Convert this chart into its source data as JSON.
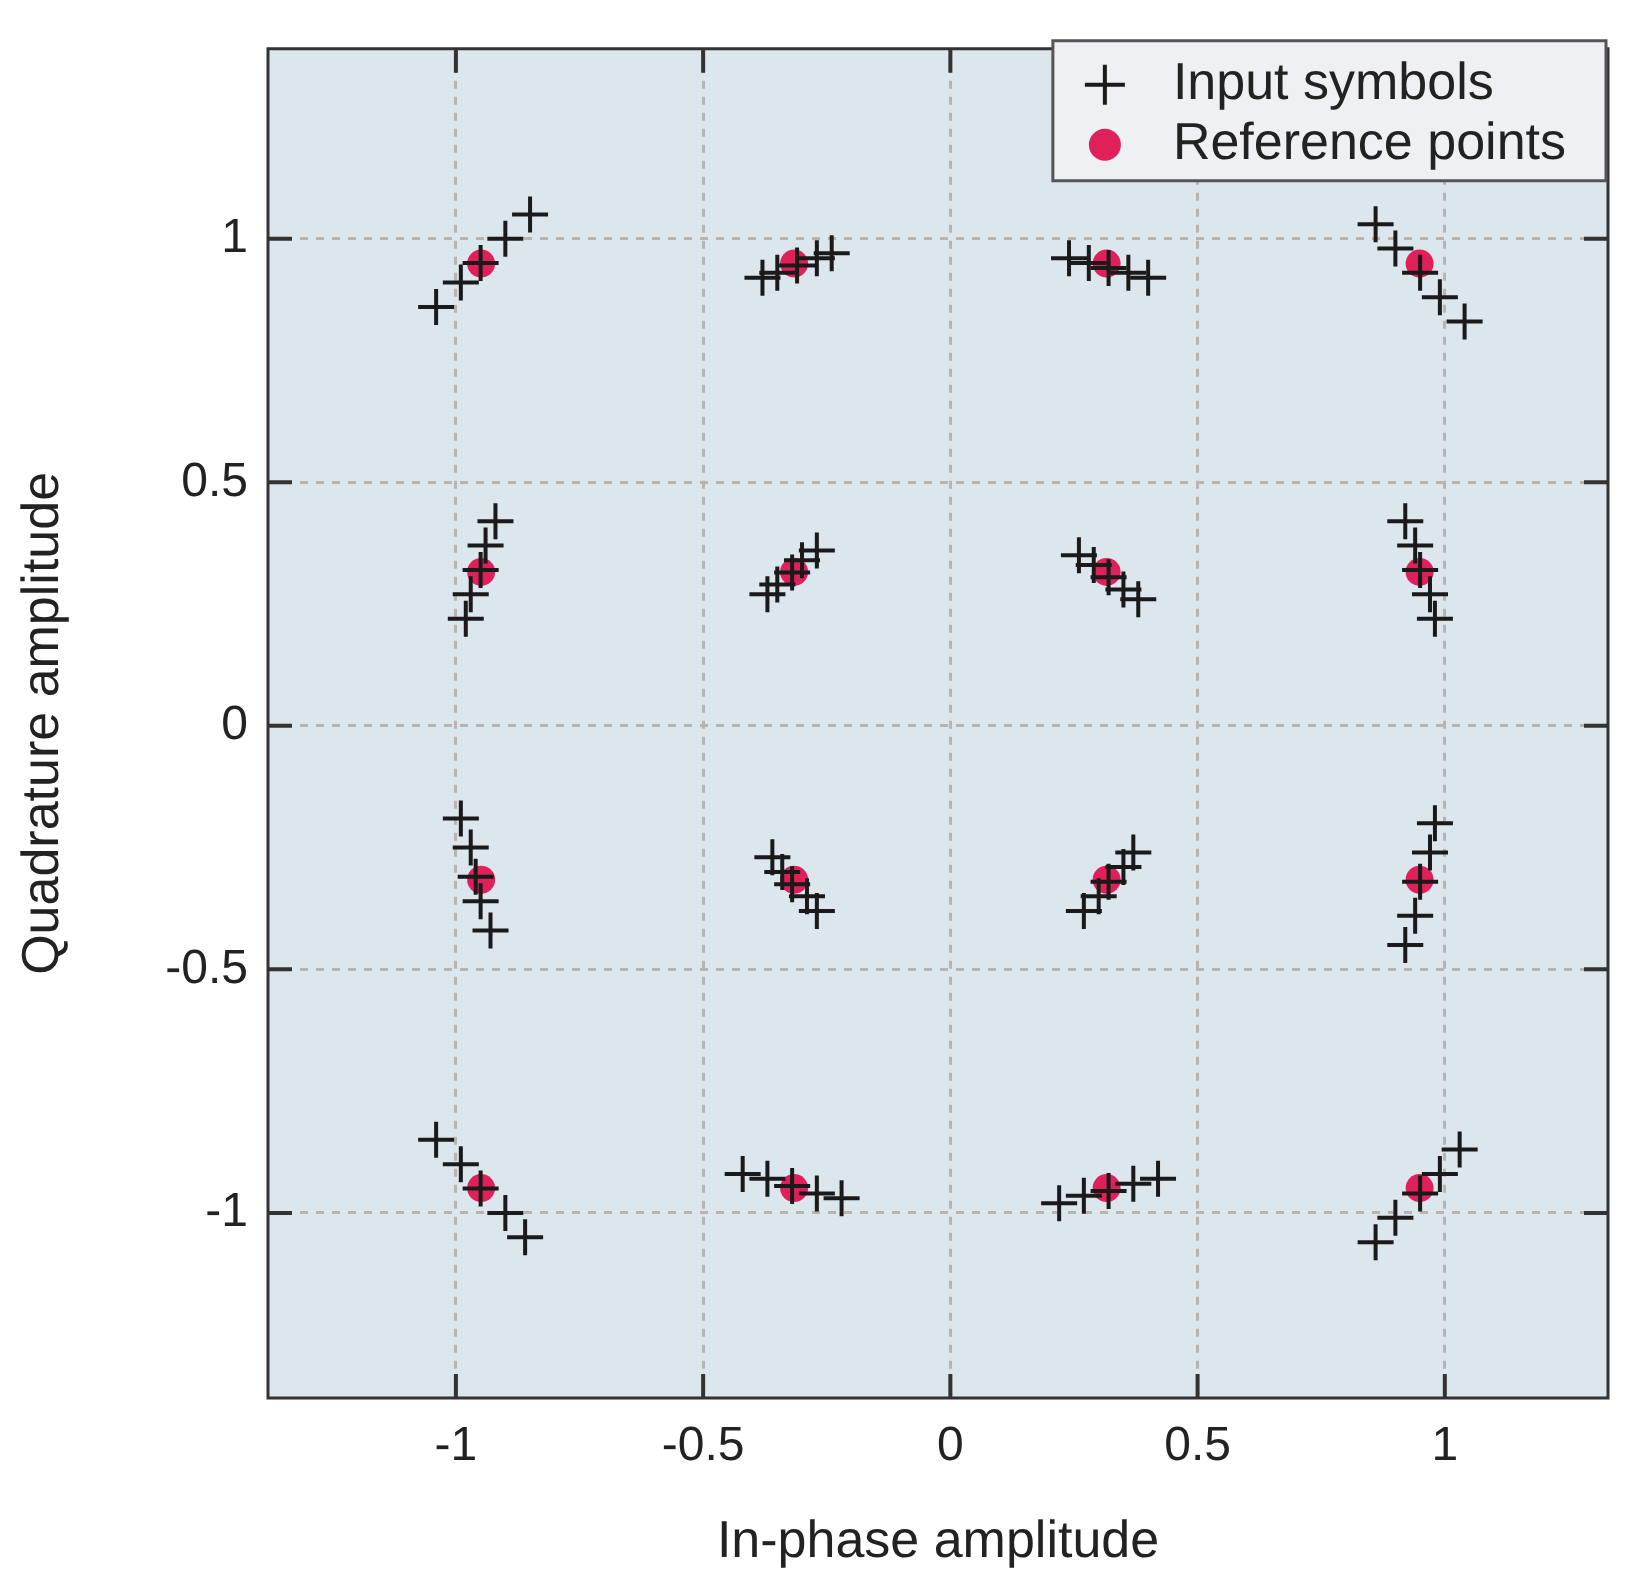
{
  "chart_data": {
    "type": "scatter",
    "xlabel": "In-phase amplitude",
    "ylabel": "Quadrature amplitude",
    "xlim": [
      -1.38,
      1.33
    ],
    "ylim": [
      -1.38,
      1.39
    ],
    "xticks": [
      -1,
      -0.5,
      0,
      0.5,
      1
    ],
    "yticks": [
      -1,
      -0.5,
      0,
      0.5,
      1
    ],
    "grid": true,
    "legend": "top right",
    "series": [
      {
        "name": "Input symbols",
        "color": "#1a1a1a",
        "marker": "cross",
        "x": [
          -1.04,
          -0.99,
          -0.95,
          -0.9,
          -0.85,
          -0.38,
          -0.35,
          -0.31,
          -0.27,
          -0.24,
          0.24,
          0.28,
          0.32,
          0.36,
          0.4,
          0.86,
          0.9,
          0.95,
          0.99,
          1.04,
          -0.98,
          -0.97,
          -0.95,
          -0.94,
          -0.92,
          -0.37,
          -0.35,
          -0.32,
          -0.3,
          -0.27,
          0.26,
          0.29,
          0.32,
          0.35,
          0.38,
          0.92,
          0.94,
          0.95,
          0.97,
          0.98,
          -0.99,
          -0.97,
          -0.96,
          -0.95,
          -0.93,
          -0.36,
          -0.34,
          -0.32,
          -0.29,
          -0.27,
          0.27,
          0.3,
          0.32,
          0.35,
          0.37,
          0.92,
          0.94,
          0.95,
          0.97,
          0.98,
          -1.04,
          -0.99,
          -0.95,
          -0.9,
          -0.86,
          -0.42,
          -0.37,
          -0.32,
          -0.27,
          -0.22,
          0.22,
          0.27,
          0.32,
          0.37,
          0.42,
          0.86,
          0.9,
          0.95,
          0.99,
          1.03
        ],
        "values": [
          0.86,
          0.91,
          0.95,
          1.0,
          1.05,
          0.92,
          0.93,
          0.945,
          0.96,
          0.97,
          0.96,
          0.95,
          0.94,
          0.93,
          0.92,
          1.03,
          0.98,
          0.93,
          0.88,
          0.83,
          0.22,
          0.27,
          0.32,
          0.37,
          0.42,
          0.27,
          0.29,
          0.315,
          0.34,
          0.36,
          0.35,
          0.33,
          0.305,
          0.28,
          0.26,
          0.42,
          0.37,
          0.32,
          0.27,
          0.22,
          -0.19,
          -0.25,
          -0.31,
          -0.36,
          -0.42,
          -0.27,
          -0.3,
          -0.325,
          -0.35,
          -0.38,
          -0.38,
          -0.35,
          -0.32,
          -0.29,
          -0.26,
          -0.45,
          -0.39,
          -0.32,
          -0.26,
          -0.2,
          -0.85,
          -0.9,
          -0.95,
          -1.0,
          -1.05,
          -0.92,
          -0.93,
          -0.945,
          -0.96,
          -0.97,
          -0.98,
          -0.965,
          -0.955,
          -0.94,
          -0.93,
          -1.06,
          -1.01,
          -0.96,
          -0.92,
          -0.87
        ]
      },
      {
        "name": "Reference points",
        "color": "#e0205a",
        "marker": "circle",
        "x": [
          -0.949,
          -0.316,
          0.316,
          0.949,
          -0.949,
          -0.316,
          0.316,
          0.949,
          -0.949,
          -0.316,
          0.316,
          0.949,
          -0.949,
          -0.316,
          0.316,
          0.949
        ],
        "values": [
          0.949,
          0.949,
          0.949,
          0.949,
          0.316,
          0.316,
          0.316,
          0.316,
          -0.316,
          -0.316,
          -0.316,
          -0.316,
          -0.949,
          -0.949,
          -0.949,
          -0.949
        ]
      }
    ]
  }
}
